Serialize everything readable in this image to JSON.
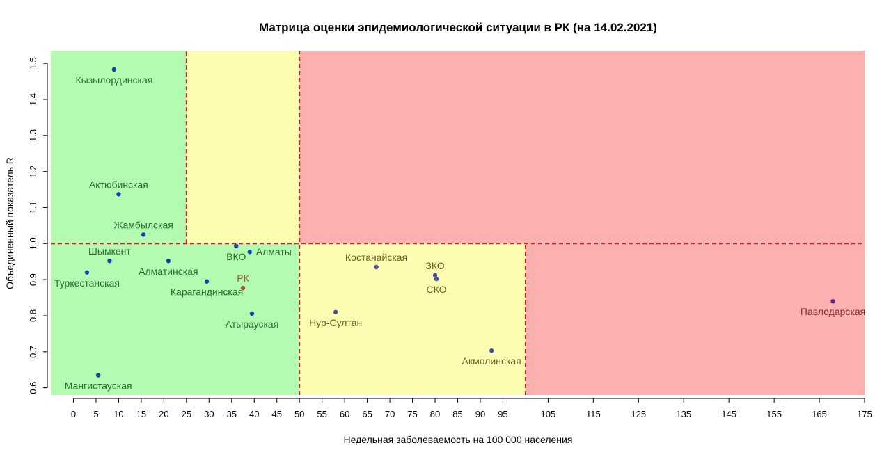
{
  "chart_data": {
    "type": "scatter",
    "title": "Матрица оценки эпидемиологической ситуации в РК (на 14.02.2021)",
    "xlabel": "Недельная заболеваемость на 100 000 населения",
    "ylabel": "Объединенный показатель R",
    "xlim": [
      -5,
      175
    ],
    "ylim": [
      0.58,
      1.535
    ],
    "x_ticks": [
      0,
      5,
      10,
      15,
      20,
      25,
      30,
      35,
      40,
      45,
      50,
      55,
      60,
      65,
      70,
      75,
      80,
      85,
      90,
      95,
      105,
      115,
      125,
      135,
      145,
      155,
      165,
      175
    ],
    "y_ticks": [
      0.6,
      0.7,
      0.8,
      0.9,
      1.0,
      1.1,
      1.2,
      1.3,
      1.4,
      1.5
    ],
    "y_tick_labels": [
      "0.6",
      "0.7",
      "0.8",
      "0.9",
      "1.0",
      "1.1",
      "1.2",
      "1.3",
      "1.4",
      "1.5"
    ],
    "zones": [
      {
        "x": [
          -5,
          25
        ],
        "y": [
          1.0,
          1.535
        ],
        "color": "#b3fbb1"
      },
      {
        "x": [
          25,
          50
        ],
        "y": [
          1.0,
          1.535
        ],
        "color": "#fdfdb1"
      },
      {
        "x": [
          50,
          175
        ],
        "y": [
          1.0,
          1.535
        ],
        "color": "#fcb0b0"
      },
      {
        "x": [
          -5,
          50
        ],
        "y": [
          0.58,
          1.0
        ],
        "color": "#b3fbb1"
      },
      {
        "x": [
          50,
          100
        ],
        "y": [
          0.58,
          1.0
        ],
        "color": "#fdfdb1"
      },
      {
        "x": [
          100,
          175
        ],
        "y": [
          0.58,
          1.0
        ],
        "color": "#fcb0b0"
      }
    ],
    "threshold_lines": [
      {
        "x1": -5,
        "y1": 1.0,
        "x2": 175,
        "y2": 1.0
      },
      {
        "x1": 25,
        "y1": 1.0,
        "x2": 25,
        "y2": 1.535
      },
      {
        "x1": 50,
        "y1": 0.58,
        "x2": 50,
        "y2": 1.535
      },
      {
        "x1": 100,
        "y1": 0.58,
        "x2": 100,
        "y2": 1.0
      }
    ],
    "line_color": "#cc2222",
    "points": [
      {
        "name": "Кызылординская",
        "x": 9,
        "y": 1.483,
        "color": "#1144aa",
        "label_color": "#2e6b2e",
        "label_pos": "below"
      },
      {
        "name": "Актюбинская",
        "x": 10,
        "y": 1.137,
        "color": "#1144aa",
        "label_color": "#2e6b2e",
        "label_pos": "above"
      },
      {
        "name": "Жамбылская",
        "x": 15.5,
        "y": 1.025,
        "color": "#1144aa",
        "label_color": "#2e6b2e",
        "label_pos": "above"
      },
      {
        "name": "ВКО",
        "x": 36,
        "y": 0.993,
        "color": "#1144aa",
        "label_color": "#2e6b2e",
        "label_pos": "below"
      },
      {
        "name": "Алматы",
        "x": 39,
        "y": 0.977,
        "color": "#1144aa",
        "label_color": "#2e6b2e",
        "label_pos": "right"
      },
      {
        "name": "Шымкент",
        "x": 8,
        "y": 0.952,
        "color": "#1144aa",
        "label_color": "#2e6b2e",
        "label_pos": "above"
      },
      {
        "name": "Алматинская",
        "x": 21,
        "y": 0.952,
        "color": "#1144aa",
        "label_color": "#2e6b2e",
        "label_pos": "below"
      },
      {
        "name": "Туркестанская",
        "x": 3,
        "y": 0.92,
        "color": "#1144aa",
        "label_color": "#2e6b2e",
        "label_pos": "below"
      },
      {
        "name": "Карагандинская",
        "x": 29.5,
        "y": 0.895,
        "color": "#1144aa",
        "label_color": "#2e6b2e",
        "label_pos": "below"
      },
      {
        "name": "РК",
        "x": 37.5,
        "y": 0.877,
        "color": "#a04a26",
        "label_color": "#a35a2a",
        "label_pos": "above"
      },
      {
        "name": "Атырауская",
        "x": 39.5,
        "y": 0.806,
        "color": "#1144aa",
        "label_color": "#2e6b2e",
        "label_pos": "below"
      },
      {
        "name": "Мангистауская",
        "x": 5.5,
        "y": 0.635,
        "color": "#1144aa",
        "label_color": "#2e6b2e",
        "label_pos": "below"
      },
      {
        "name": "Костанайская",
        "x": 67,
        "y": 0.935,
        "color": "#4a4aa0",
        "label_color": "#6b5e1e",
        "label_pos": "above"
      },
      {
        "name": "ЗКО",
        "x": 80,
        "y": 0.912,
        "color": "#4a4aa0",
        "label_color": "#6b5e1e",
        "label_pos": "above"
      },
      {
        "name": "СКО",
        "x": 80.3,
        "y": 0.902,
        "color": "#4a4aa0",
        "label_color": "#6b5e1e",
        "label_pos": "below"
      },
      {
        "name": "Нур-Султан",
        "x": 58,
        "y": 0.81,
        "color": "#4a4aa0",
        "label_color": "#6b5e1e",
        "label_pos": "below"
      },
      {
        "name": "Акмолинская",
        "x": 92.5,
        "y": 0.703,
        "color": "#4a4aa0",
        "label_color": "#6b5e1e",
        "label_pos": "below"
      },
      {
        "name": "Павлодарская",
        "x": 168,
        "y": 0.84,
        "color": "#5a2a8a",
        "label_color": "#8a2a3a",
        "label_pos": "below"
      }
    ]
  }
}
